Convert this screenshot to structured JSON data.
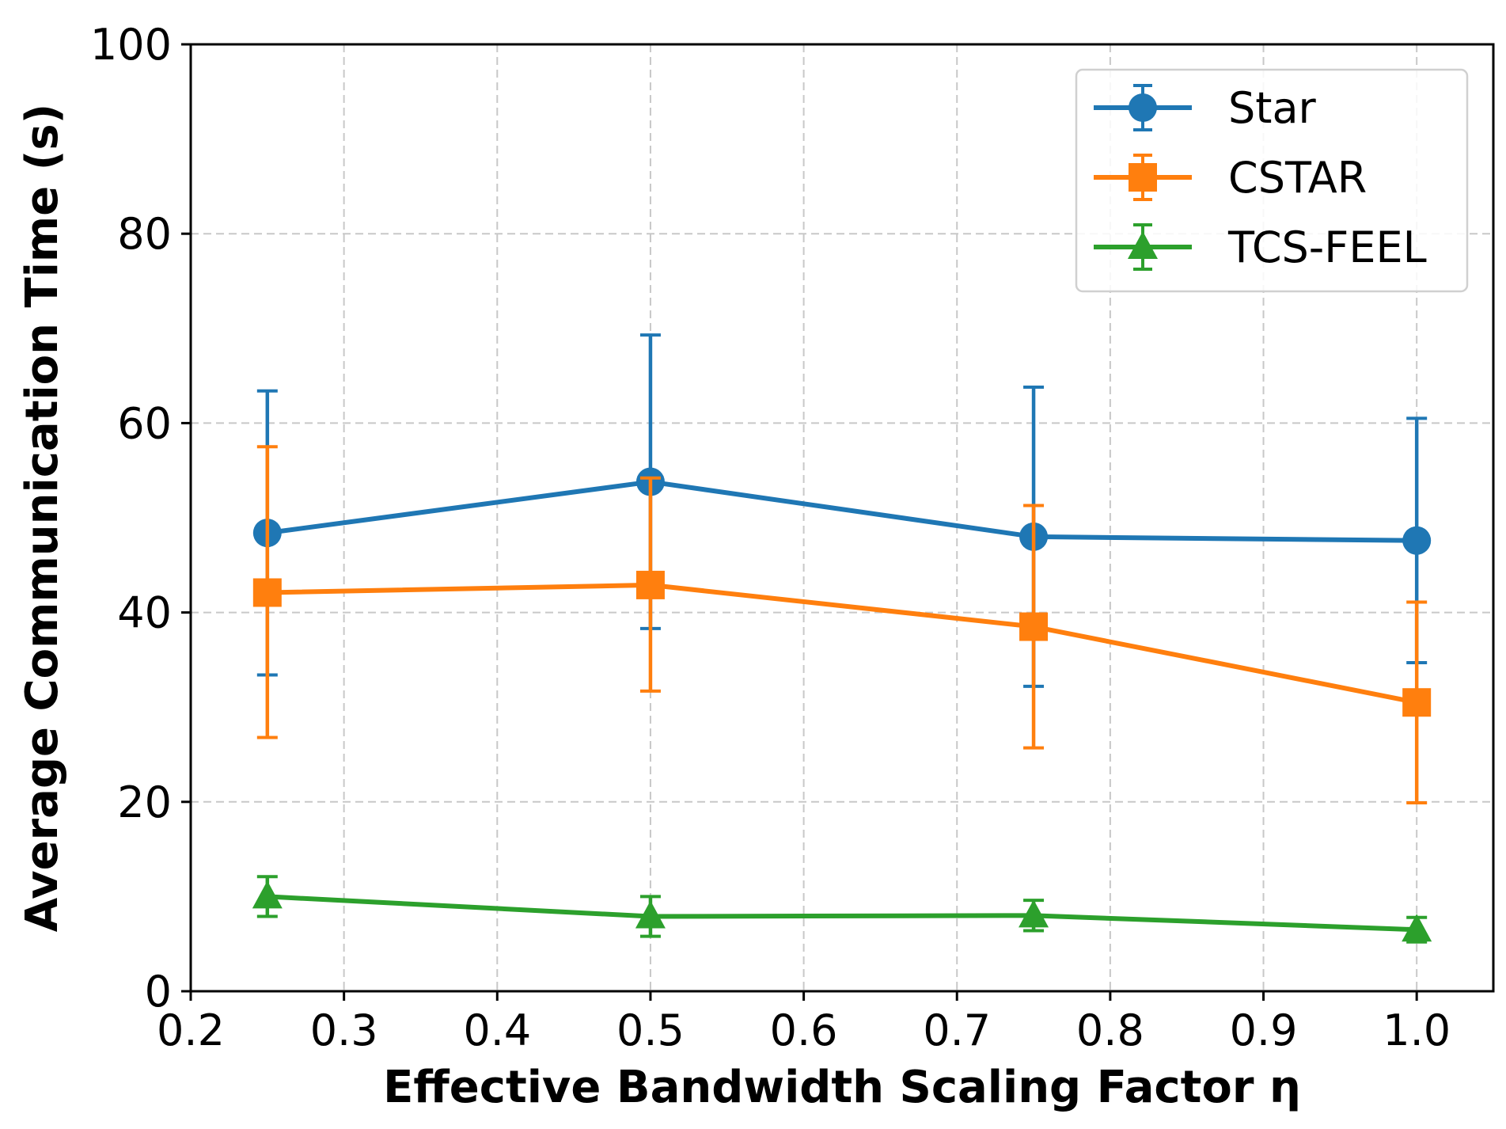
{
  "chart_data": {
    "type": "line",
    "xlabel": "Effective Bandwidth Scaling Factor η",
    "ylabel": "Average Communication Time (s)",
    "xlim": [
      0.2,
      1.05
    ],
    "ylim": [
      0,
      100
    ],
    "xticks": [
      "0.2",
      "0.3",
      "0.4",
      "0.5",
      "0.6",
      "0.7",
      "0.8",
      "0.9",
      "1.0"
    ],
    "yticks": [
      "0",
      "20",
      "40",
      "60",
      "80",
      "100"
    ],
    "grid": true,
    "legend_position": "top-right",
    "x": [
      0.25,
      0.5,
      0.75,
      1.0
    ],
    "series": [
      {
        "name": "Star",
        "color": "#1f77b4",
        "marker": "circle",
        "values": [
          48.4,
          53.8,
          48.0,
          47.6
        ],
        "err_low": [
          33.4,
          38.3,
          32.2,
          34.7
        ],
        "err_high": [
          63.4,
          69.3,
          63.8,
          60.5
        ]
      },
      {
        "name": "CSTAR",
        "color": "#ff7f0e",
        "marker": "square",
        "values": [
          42.1,
          42.9,
          38.5,
          30.5
        ],
        "err_low": [
          26.8,
          31.7,
          25.7,
          19.9
        ],
        "err_high": [
          57.5,
          54.2,
          51.3,
          41.1
        ]
      },
      {
        "name": "TCS-FEEL",
        "color": "#2ca02c",
        "marker": "triangle",
        "values": [
          10.0,
          7.9,
          8.0,
          6.5
        ],
        "err_low": [
          7.9,
          5.8,
          6.4,
          5.2
        ],
        "err_high": [
          12.1,
          10.0,
          9.6,
          7.8
        ]
      }
    ]
  }
}
